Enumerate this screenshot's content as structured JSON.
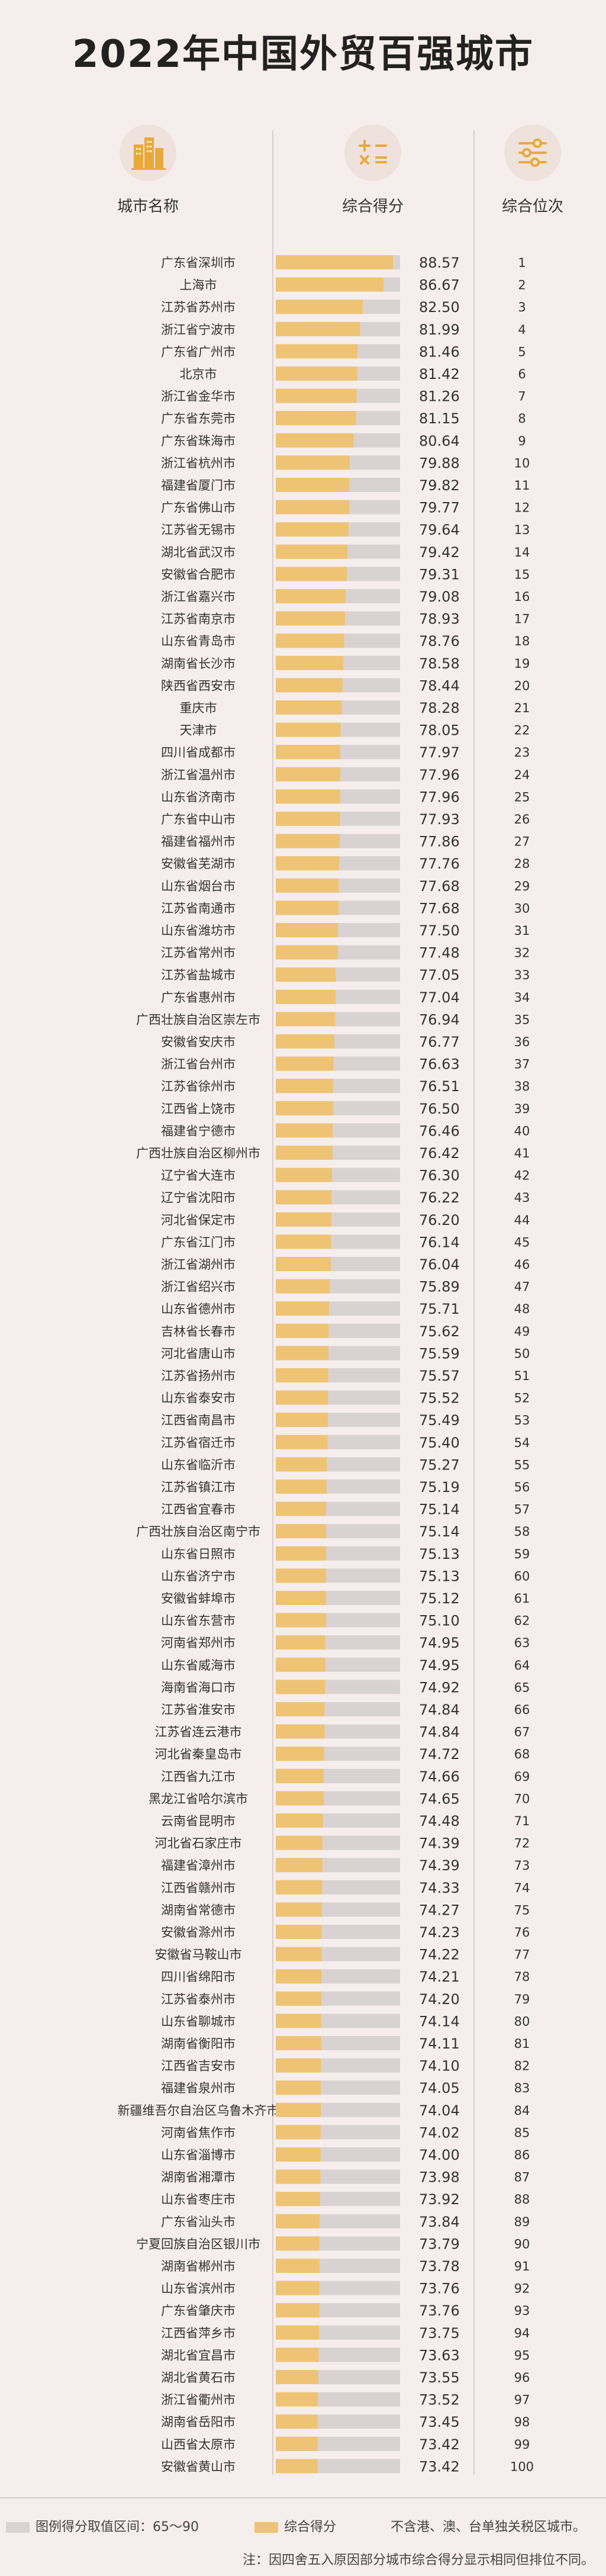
{
  "title": "2022年中国外贸百强城市",
  "headers": {
    "city": "城市名称",
    "score": "综合得分",
    "rank": "综合位次"
  },
  "icons": {
    "city": "city-buildings-icon",
    "score": "math-operations-icon",
    "rank": "ranking-sliders-icon"
  },
  "colors": {
    "bar": "#eec474",
    "track": "#d8d3d2",
    "background": "#f6eded"
  },
  "legend": {
    "range_label": "图例得分取值区间：65～90",
    "score_label": "综合得分",
    "scope_note": "不含港、澳、台单独关税区城市。",
    "rounding_note": "注：因四舍五入原因部分城市综合得分显示相同但排位不同。"
  },
  "chart_data": {
    "type": "bar",
    "orientation": "horizontal",
    "title": "2022年中国外贸百强城市",
    "xlim": [
      65,
      90
    ],
    "series_name": "综合得分",
    "rows": [
      {
        "city": "广东省深圳市",
        "score": 88.57,
        "rank": 1
      },
      {
        "city": "上海市",
        "score": 86.67,
        "rank": 2
      },
      {
        "city": "江苏省苏州市",
        "score": 82.5,
        "rank": 3
      },
      {
        "city": "浙江省宁波市",
        "score": 81.99,
        "rank": 4
      },
      {
        "city": "广东省广州市",
        "score": 81.46,
        "rank": 5
      },
      {
        "city": "北京市",
        "score": 81.42,
        "rank": 6
      },
      {
        "city": "浙江省金华市",
        "score": 81.26,
        "rank": 7
      },
      {
        "city": "广东省东莞市",
        "score": 81.15,
        "rank": 8
      },
      {
        "city": "广东省珠海市",
        "score": 80.64,
        "rank": 9
      },
      {
        "city": "浙江省杭州市",
        "score": 79.88,
        "rank": 10
      },
      {
        "city": "福建省厦门市",
        "score": 79.82,
        "rank": 11
      },
      {
        "city": "广东省佛山市",
        "score": 79.77,
        "rank": 12
      },
      {
        "city": "江苏省无锡市",
        "score": 79.64,
        "rank": 13
      },
      {
        "city": "湖北省武汉市",
        "score": 79.42,
        "rank": 14
      },
      {
        "city": "安徽省合肥市",
        "score": 79.31,
        "rank": 15
      },
      {
        "city": "浙江省嘉兴市",
        "score": 79.08,
        "rank": 16
      },
      {
        "city": "江苏省南京市",
        "score": 78.93,
        "rank": 17
      },
      {
        "city": "山东省青岛市",
        "score": 78.76,
        "rank": 18
      },
      {
        "city": "湖南省长沙市",
        "score": 78.58,
        "rank": 19
      },
      {
        "city": "陕西省西安市",
        "score": 78.44,
        "rank": 20
      },
      {
        "city": "重庆市",
        "score": 78.28,
        "rank": 21
      },
      {
        "city": "天津市",
        "score": 78.05,
        "rank": 22
      },
      {
        "city": "四川省成都市",
        "score": 77.97,
        "rank": 23
      },
      {
        "city": "浙江省温州市",
        "score": 77.96,
        "rank": 24
      },
      {
        "city": "山东省济南市",
        "score": 77.96,
        "rank": 25
      },
      {
        "city": "广东省中山市",
        "score": 77.93,
        "rank": 26
      },
      {
        "city": "福建省福州市",
        "score": 77.86,
        "rank": 27
      },
      {
        "city": "安徽省芜湖市",
        "score": 77.76,
        "rank": 28
      },
      {
        "city": "山东省烟台市",
        "score": 77.68,
        "rank": 29
      },
      {
        "city": "江苏省南通市",
        "score": 77.68,
        "rank": 30
      },
      {
        "city": "山东省潍坊市",
        "score": 77.5,
        "rank": 31
      },
      {
        "city": "江苏省常州市",
        "score": 77.48,
        "rank": 32
      },
      {
        "city": "江苏省盐城市",
        "score": 77.05,
        "rank": 33
      },
      {
        "city": "广东省惠州市",
        "score": 77.04,
        "rank": 34
      },
      {
        "city": "广西壮族自治区崇左市",
        "score": 76.94,
        "rank": 35
      },
      {
        "city": "安徽省安庆市",
        "score": 76.77,
        "rank": 36
      },
      {
        "city": "浙江省台州市",
        "score": 76.63,
        "rank": 37
      },
      {
        "city": "江苏省徐州市",
        "score": 76.51,
        "rank": 38
      },
      {
        "city": "江西省上饶市",
        "score": 76.5,
        "rank": 39
      },
      {
        "city": "福建省宁德市",
        "score": 76.46,
        "rank": 40
      },
      {
        "city": "广西壮族自治区柳州市",
        "score": 76.42,
        "rank": 41
      },
      {
        "city": "辽宁省大连市",
        "score": 76.3,
        "rank": 42
      },
      {
        "city": "辽宁省沈阳市",
        "score": 76.22,
        "rank": 43
      },
      {
        "city": "河北省保定市",
        "score": 76.2,
        "rank": 44
      },
      {
        "city": "广东省江门市",
        "score": 76.14,
        "rank": 45
      },
      {
        "city": "浙江省湖州市",
        "score": 76.04,
        "rank": 46
      },
      {
        "city": "浙江省绍兴市",
        "score": 75.89,
        "rank": 47
      },
      {
        "city": "山东省德州市",
        "score": 75.71,
        "rank": 48
      },
      {
        "city": "吉林省长春市",
        "score": 75.62,
        "rank": 49
      },
      {
        "city": "河北省唐山市",
        "score": 75.59,
        "rank": 50
      },
      {
        "city": "江苏省扬州市",
        "score": 75.57,
        "rank": 51
      },
      {
        "city": "山东省泰安市",
        "score": 75.52,
        "rank": 52
      },
      {
        "city": "江西省南昌市",
        "score": 75.49,
        "rank": 53
      },
      {
        "city": "江苏省宿迁市",
        "score": 75.4,
        "rank": 54
      },
      {
        "city": "山东省临沂市",
        "score": 75.27,
        "rank": 55
      },
      {
        "city": "江苏省镇江市",
        "score": 75.19,
        "rank": 56
      },
      {
        "city": "江西省宜春市",
        "score": 75.14,
        "rank": 57
      },
      {
        "city": "广西壮族自治区南宁市",
        "score": 75.14,
        "rank": 58
      },
      {
        "city": "山东省日照市",
        "score": 75.13,
        "rank": 59
      },
      {
        "city": "山东省济宁市",
        "score": 75.13,
        "rank": 60
      },
      {
        "city": "安徽省蚌埠市",
        "score": 75.12,
        "rank": 61
      },
      {
        "city": "山东省东营市",
        "score": 75.1,
        "rank": 62
      },
      {
        "city": "河南省郑州市",
        "score": 74.95,
        "rank": 63
      },
      {
        "city": "山东省威海市",
        "score": 74.95,
        "rank": 64
      },
      {
        "city": "海南省海口市",
        "score": 74.92,
        "rank": 65
      },
      {
        "city": "江苏省淮安市",
        "score": 74.84,
        "rank": 66
      },
      {
        "city": "江苏省连云港市",
        "score": 74.84,
        "rank": 67
      },
      {
        "city": "河北省秦皇岛市",
        "score": 74.72,
        "rank": 68
      },
      {
        "city": "江西省九江市",
        "score": 74.66,
        "rank": 69
      },
      {
        "city": "黑龙江省哈尔滨市",
        "score": 74.65,
        "rank": 70
      },
      {
        "city": "云南省昆明市",
        "score": 74.48,
        "rank": 71
      },
      {
        "city": "河北省石家庄市",
        "score": 74.39,
        "rank": 72
      },
      {
        "city": "福建省漳州市",
        "score": 74.39,
        "rank": 73
      },
      {
        "city": "江西省赣州市",
        "score": 74.33,
        "rank": 74
      },
      {
        "city": "湖南省常德市",
        "score": 74.27,
        "rank": 75
      },
      {
        "city": "安徽省滁州市",
        "score": 74.23,
        "rank": 76
      },
      {
        "city": "安徽省马鞍山市",
        "score": 74.22,
        "rank": 77
      },
      {
        "city": "四川省绵阳市",
        "score": 74.21,
        "rank": 78
      },
      {
        "city": "江苏省泰州市",
        "score": 74.2,
        "rank": 79
      },
      {
        "city": "山东省聊城市",
        "score": 74.14,
        "rank": 80
      },
      {
        "city": "湖南省衡阳市",
        "score": 74.11,
        "rank": 81
      },
      {
        "city": "江西省吉安市",
        "score": 74.1,
        "rank": 82
      },
      {
        "city": "福建省泉州市",
        "score": 74.05,
        "rank": 83
      },
      {
        "city": "新疆维吾尔自治区乌鲁木齐市",
        "score": 74.04,
        "rank": 84
      },
      {
        "city": "河南省焦作市",
        "score": 74.02,
        "rank": 85
      },
      {
        "city": "山东省淄博市",
        "score": 74.0,
        "rank": 86
      },
      {
        "city": "湖南省湘潭市",
        "score": 73.98,
        "rank": 87
      },
      {
        "city": "山东省枣庄市",
        "score": 73.92,
        "rank": 88
      },
      {
        "city": "广东省汕头市",
        "score": 73.84,
        "rank": 89
      },
      {
        "city": "宁夏回族自治区银川市",
        "score": 73.79,
        "rank": 90
      },
      {
        "city": "湖南省郴州市",
        "score": 73.78,
        "rank": 91
      },
      {
        "city": "山东省滨州市",
        "score": 73.76,
        "rank": 92
      },
      {
        "city": "广东省肇庆市",
        "score": 73.76,
        "rank": 93
      },
      {
        "city": "江西省萍乡市",
        "score": 73.75,
        "rank": 94
      },
      {
        "city": "湖北省宜昌市",
        "score": 73.63,
        "rank": 95
      },
      {
        "city": "湖北省黄石市",
        "score": 73.55,
        "rank": 96
      },
      {
        "city": "浙江省衢州市",
        "score": 73.52,
        "rank": 97
      },
      {
        "city": "湖南省岳阳市",
        "score": 73.45,
        "rank": 98
      },
      {
        "city": "山西省太原市",
        "score": 73.42,
        "rank": 99
      },
      {
        "city": "安徽省黄山市",
        "score": 73.42,
        "rank": 100
      }
    ]
  }
}
